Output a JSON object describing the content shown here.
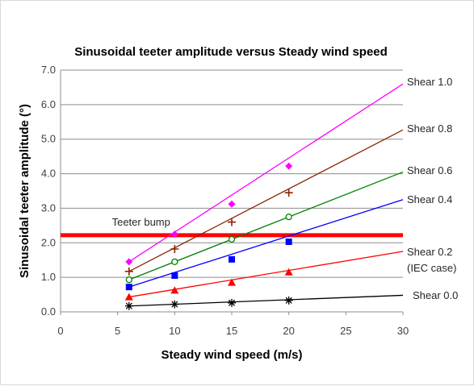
{
  "chart_data": {
    "type": "line",
    "title": "Sinusoidal teeter amplitude versus Steady wind speed",
    "xlabel": "Steady wind speed (m/s)",
    "ylabel": "Sinusoidal teeter amplitude (°)",
    "xlim": [
      0,
      30
    ],
    "ylim": [
      0,
      7
    ],
    "x_ticks": [
      "0",
      "5",
      "10",
      "15",
      "20",
      "25",
      "30"
    ],
    "y_ticks": [
      "0.0",
      "1.0",
      "2.0",
      "3.0",
      "4.0",
      "5.0",
      "6.0",
      "7.0"
    ],
    "grid": "horizontal",
    "legend": "none",
    "series": [
      {
        "name": "Shear 1.0",
        "label_lines": [
          "Shear 1.0"
        ],
        "color": "#ff00ff",
        "marker": "diamond",
        "x": [
          6,
          10,
          15,
          20
        ],
        "values": [
          1.45,
          2.25,
          3.12,
          4.22
        ],
        "trend": {
          "from": [
            6,
            1.45
          ],
          "to": [
            30,
            6.6
          ]
        }
      },
      {
        "name": "Shear 0.8",
        "label_lines": [
          "Shear 0.8"
        ],
        "color": "#8b2500",
        "marker": "plus",
        "x": [
          6,
          10,
          15,
          20
        ],
        "values": [
          1.17,
          1.82,
          2.6,
          3.45
        ],
        "trend": {
          "from": [
            6,
            1.17
          ],
          "to": [
            30,
            5.27
          ]
        }
      },
      {
        "name": "Shear 0.6",
        "label_lines": [
          "Shear 0.6"
        ],
        "color": "#008000",
        "marker": "circle",
        "x": [
          6,
          10,
          15,
          20
        ],
        "values": [
          0.93,
          1.45,
          2.1,
          2.75
        ],
        "trend": {
          "from": [
            6,
            0.93
          ],
          "to": [
            30,
            4.05
          ]
        }
      },
      {
        "name": "Shear 0.4",
        "label_lines": [
          "Shear 0.4"
        ],
        "color": "#0000ff",
        "marker": "square",
        "x": [
          6,
          10,
          15,
          20
        ],
        "values": [
          0.72,
          1.05,
          1.52,
          2.03
        ],
        "trend": {
          "from": [
            6,
            0.72
          ],
          "to": [
            30,
            3.25
          ]
        }
      },
      {
        "name": "Shear 0.2 (IEC case)",
        "label_lines": [
          "Shear 0.2",
          "(IEC case)"
        ],
        "color": "#ff0000",
        "marker": "triangle",
        "x": [
          6,
          10,
          15,
          20
        ],
        "values": [
          0.43,
          0.62,
          0.85,
          1.15
        ],
        "trend": {
          "from": [
            6,
            0.43
          ],
          "to": [
            30,
            1.75
          ]
        }
      },
      {
        "name": "Shear 0.0",
        "label_lines": [
          "Shear 0.0"
        ],
        "color": "#000000",
        "marker": "asterisk",
        "x": [
          6,
          10,
          15,
          20
        ],
        "values": [
          0.17,
          0.22,
          0.26,
          0.33
        ],
        "trend": {
          "from": [
            6,
            0.17
          ],
          "to": [
            30,
            0.48
          ]
        }
      }
    ],
    "reference_line": {
      "label": "Teeter bump",
      "y": 2.22,
      "color": "#ff0000"
    }
  }
}
